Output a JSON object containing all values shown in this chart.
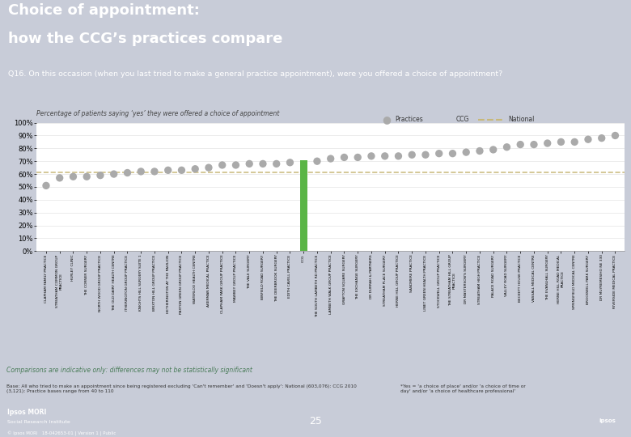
{
  "title_line1": "Choice of appointment:",
  "title_line2": "how the CCG’s practices compare",
  "title_bg": "#6b7db3",
  "subtitle_bg": "#a8afc8",
  "question": "Q16. On this occasion (when you last tried to make a general practice appointment), were you offered a choice of appointment?",
  "ylabel": "Percentage of patients saying ‘yes’ they were offered a choice of appointment",
  "national_line": 61,
  "ccg_value": 71,
  "ccg_index": 19,
  "practices": [
    {
      "name": "CLAPHAM FAMILY PRACTICE",
      "value": 51
    },
    {
      "name": "STREATHAM COMMON GROUP\nPRACTICE",
      "value": 57
    },
    {
      "name": "HURLEY CLINIC",
      "value": 58
    },
    {
      "name": "THE CORNER SURGERY",
      "value": 58
    },
    {
      "name": "NORTH WOOD GROUP PRACTICE",
      "value": 59
    },
    {
      "name": "THE OLD DAIRY HEALTH CENTRE",
      "value": 60
    },
    {
      "name": "ITHERINGTON GROUP PRACTICE",
      "value": 61
    },
    {
      "name": "KNIGHTS HILL SURGERY SUITE 1",
      "value": 62
    },
    {
      "name": "BRIXTON HILL GROUP PRACTICE",
      "value": 62
    },
    {
      "name": "HETHERINGTON AT THE PAVILION",
      "value": 63
    },
    {
      "name": "PAXTON GREEN GROUP PRACTICE",
      "value": 63
    },
    {
      "name": "WATERLOO HEALTH CENTRE",
      "value": 64
    },
    {
      "name": "AKERMAN MEDICAL PRACTICE",
      "value": 65
    },
    {
      "name": "CLAPHAM PARK GROUP PRACTICE",
      "value": 67
    },
    {
      "name": "MAWBEY GROUP PRACTICE",
      "value": 67
    },
    {
      "name": "THE VALE SURGERY",
      "value": 68
    },
    {
      "name": "BINFIELD ROAD SURGERY",
      "value": 68
    },
    {
      "name": "THE DEERBROOK SURGERY",
      "value": 68
    },
    {
      "name": "EDITH CAVELL PRACTICE",
      "value": 69
    },
    {
      "name": "CCG",
      "value": 71,
      "is_ccg": true
    },
    {
      "name": "THE SOUTH LAMBETH RD PRACTICE",
      "value": 70
    },
    {
      "name": "LAMBETH WALK GROUP PRACTICE",
      "value": 72
    },
    {
      "name": "GRAFTON SQUARE SURGERY",
      "value": 73
    },
    {
      "name": "THE EXCHANGE SURGERY",
      "value": 73
    },
    {
      "name": "DR DURRAH & PARTNERS",
      "value": 74
    },
    {
      "name": "STREATHAM PLACE SURGERY",
      "value": 74
    },
    {
      "name": "HERNE HILL GROUP PRACTICE",
      "value": 74
    },
    {
      "name": "SANDMERE PRACTICE",
      "value": 75
    },
    {
      "name": "LINET GREEN HEALTH PRACTICE",
      "value": 75
    },
    {
      "name": "STOCKWELL GROUP PRACTICE",
      "value": 76
    },
    {
      "name": "THE STREATHAM HILL GROUP\nPRACTICE",
      "value": 76
    },
    {
      "name": "DR MASTERSON'S SURGERY",
      "value": 77
    },
    {
      "name": "STREATHAM HIGH PRACTICE",
      "value": 78
    },
    {
      "name": "PALACE ROAD SURGERY",
      "value": 79
    },
    {
      "name": "VALLEY ROAD SURGERY",
      "value": 81
    },
    {
      "name": "BECKETT HOUSE PRACTICE",
      "value": 83
    },
    {
      "name": "VASSALL MEDICAL CENTRE",
      "value": 83
    },
    {
      "name": "THE EVANLHALL SURGERY",
      "value": 84
    },
    {
      "name": "HERNE HILL ROAD MEDICAL\nPRACTICE",
      "value": 85
    },
    {
      "name": "SPRINGFIELD MEDICAL CENTRE",
      "value": 85
    },
    {
      "name": "BROCKWELL PARK SURGERY",
      "value": 87
    },
    {
      "name": "DR MUYREMESIHO NE 330",
      "value": 88
    },
    {
      "name": "RIVERSIDE MEDICAL PRACTICE",
      "value": 90
    }
  ],
  "practice_color": "#aaaaaa",
  "ccg_color": "#5ab546",
  "national_color": "#c8b878",
  "footer_note": "Comparisons are indicative only: differences may not be statistically significant",
  "base_note": "Base: All who tried to make an appointment since being registered excluding 'Can't remember' and 'Doesn't apply': National (603,076): CCG 2010\n(3,121): Practice bases range from 40 to 110",
  "star_note": "*Yes = 'a choice of place' and/or 'a choice of time or\nday' and/or 'a choice of healthcare professional'",
  "page_num": "25",
  "footer_bg": "#6b7db3",
  "note_bg": "#e8e8e8",
  "comparisons_color": "#4a7c59",
  "bg_color": "#c8ccd8"
}
